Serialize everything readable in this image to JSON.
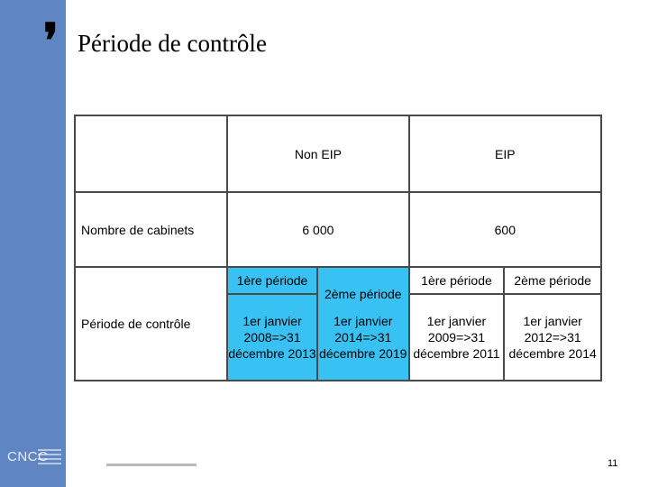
{
  "slide": {
    "title": "Période de contrôle",
    "quote_glyph": "❜",
    "page_number": "11",
    "logo": {
      "text": "CNCC"
    }
  },
  "table": {
    "headers": {
      "non_eip": "Non EIP",
      "eip": "EIP"
    },
    "rows": {
      "cabinets": {
        "label": "Nombre de cabinets",
        "non_eip": "6 000",
        "eip": "600"
      },
      "periode": {
        "label": "Période de contrôle",
        "non_eip": [
          {
            "heading": "1ère période",
            "range": "1er janvier 2008=>31 décembre 2013"
          },
          {
            "heading": "2ème période",
            "range": "1er janvier 2014=>31 décembre 2019"
          }
        ],
        "eip": [
          {
            "heading": "1ère période",
            "range": "1er janvier 2009=>31 décembre 2011"
          },
          {
            "heading": "2ème période",
            "range": "1er janvier 2012=>31 décembre 2014"
          }
        ]
      }
    }
  },
  "colors": {
    "sidebar": "#5f86c2",
    "highlight": "#38c1f3",
    "border": "#4a4a4a"
  }
}
